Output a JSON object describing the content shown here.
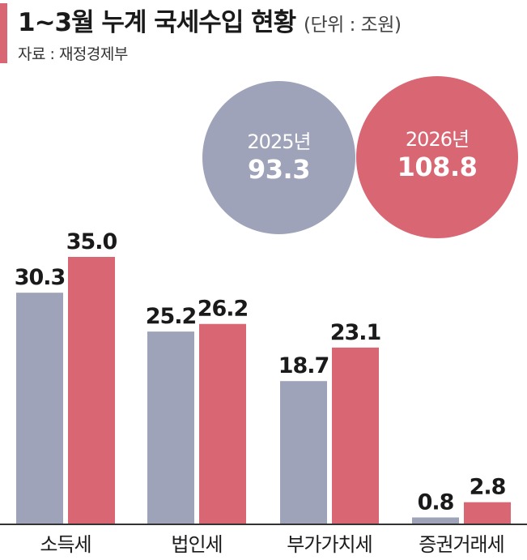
{
  "title": "1~3월 누계 국세수입 현황",
  "unit": "(단위 : 조원)",
  "source": "자료 : 재정경제부",
  "colors": {
    "y2025": "#9ea3ba",
    "y2026": "#d96673",
    "accent": "#d96673"
  },
  "totals": [
    {
      "year": "2025년",
      "value": "93.3"
    },
    {
      "year": "2026년",
      "value": "108.8"
    }
  ],
  "chart_data": {
    "type": "bar",
    "categories": [
      "소득세",
      "법인세",
      "부가가치세",
      "증권거래세"
    ],
    "series": [
      {
        "name": "2025년",
        "values": [
          30.3,
          25.2,
          18.7,
          0.8
        ]
      },
      {
        "name": "2026년",
        "values": [
          35.0,
          26.2,
          23.1,
          2.8
        ]
      }
    ],
    "ylim": [
      0,
      35.0
    ],
    "grid": false,
    "legend": "none"
  }
}
